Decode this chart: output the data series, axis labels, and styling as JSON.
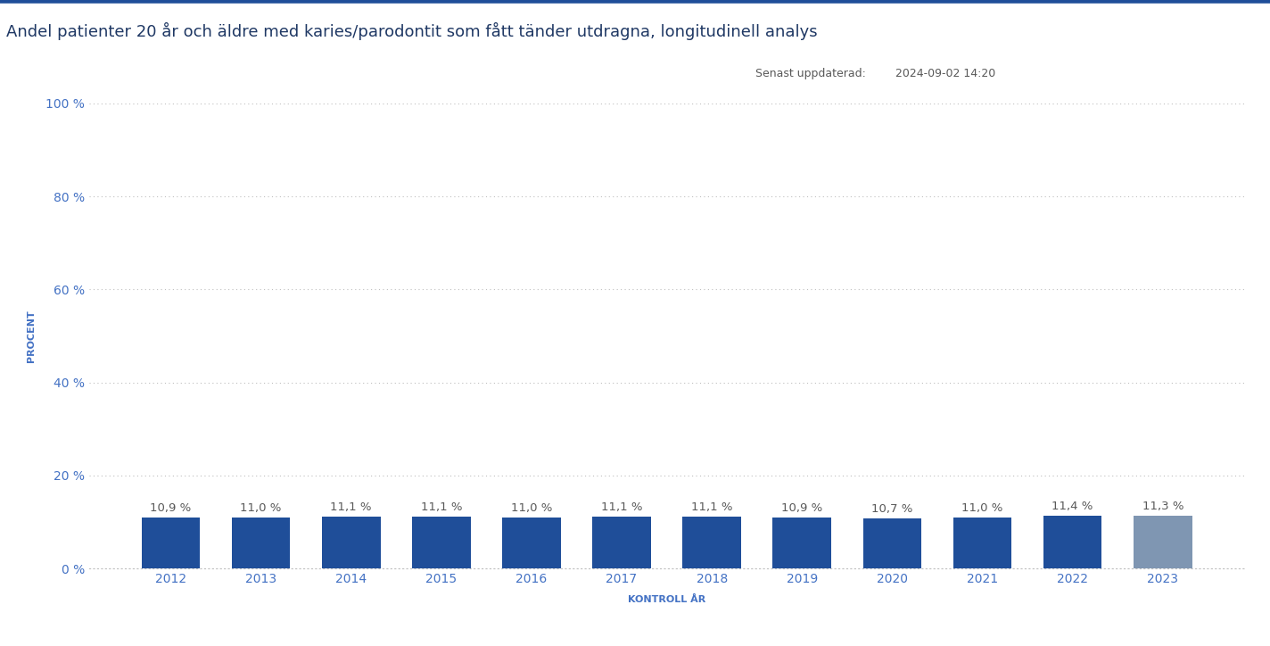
{
  "title": "Andel patienter 20 år och äldre med karies/parodontit som fått tänder utdragna, longitudinell analys",
  "subtitle_label": "Senast uppdaterad:",
  "subtitle_date": "2024-09-02 14:20",
  "xlabel": "KONTROLL ÅR",
  "ylabel": "PROCENT",
  "categories": [
    "2012",
    "2013",
    "2014",
    "2015",
    "2016",
    "2017",
    "2018",
    "2019",
    "2020",
    "2021",
    "2022",
    "2023"
  ],
  "values": [
    10.9,
    11.0,
    11.1,
    11.1,
    11.0,
    11.1,
    11.1,
    10.9,
    10.7,
    11.0,
    11.4,
    11.3
  ],
  "labels": [
    "10,9 %",
    "11,0 %",
    "11,1 %",
    "11,1 %",
    "11,0 %",
    "11,1 %",
    "11,1 %",
    "10,9 %",
    "10,7 %",
    "11,0 %",
    "11,4 %",
    "11,3 %"
  ],
  "bar_colors": [
    "#1F4E99",
    "#1F4E99",
    "#1F4E99",
    "#1F4E99",
    "#1F4E99",
    "#1F4E99",
    "#1F4E99",
    "#1F4E99",
    "#1F4E99",
    "#1F4E99",
    "#1F4E99",
    "#7F96B2"
  ],
  "ylim": [
    0,
    100
  ],
  "yticks": [
    0,
    20,
    40,
    60,
    80,
    100
  ],
  "ytick_labels": [
    "0 %",
    "20 %",
    "40 %",
    "60 %",
    "80 %",
    "100 %"
  ],
  "background_color": "#FFFFFF",
  "plot_bg_color": "#FFFFFF",
  "title_color": "#1F3864",
  "axis_label_color": "#4472C4",
  "tick_label_color": "#4472C4",
  "grid_color": "#BFBFBF",
  "bar_label_color": "#595959",
  "top_border_color": "#1F4E99",
  "title_fontsize": 13,
  "bar_label_fontsize": 9.5,
  "axis_label_fontsize": 8,
  "tick_fontsize": 10,
  "subtitle_fontsize": 9
}
